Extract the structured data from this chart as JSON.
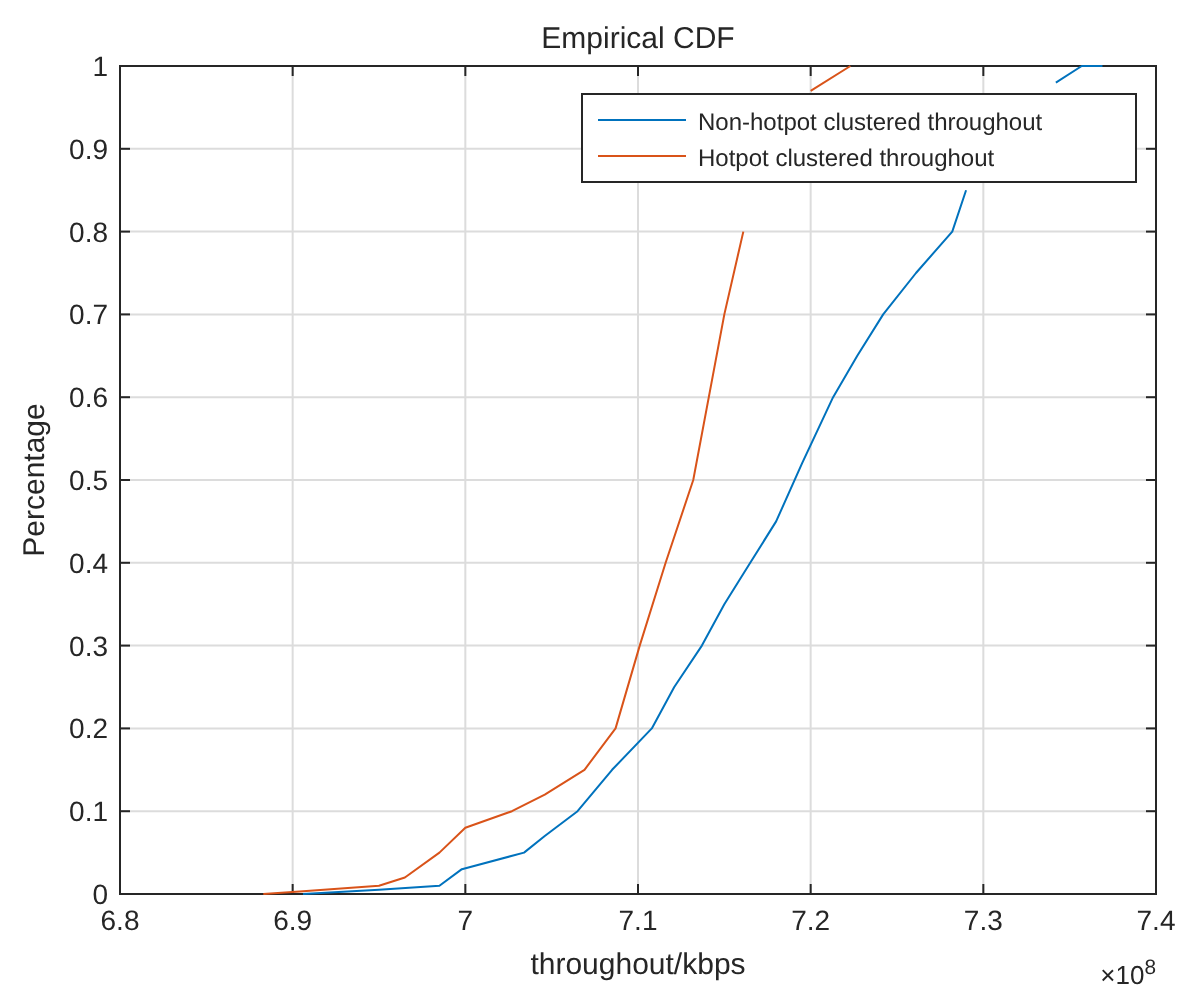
{
  "chart_data": {
    "type": "line",
    "title": "Empirical CDF",
    "xlabel": "throughout/kbps",
    "ylabel": "Percentage",
    "annotations": [
      "×10$^{8}$"
    ],
    "xlim": [
      6.8,
      7.4
    ],
    "xticks": [
      6.8,
      6.9,
      7,
      7.1,
      7.2,
      7.3,
      7.4
    ],
    "ylim": [
      0,
      1
    ],
    "yticks": [
      0,
      0.1,
      0.2,
      0.3,
      0.4,
      0.5,
      0.6,
      0.7,
      0.8,
      0.9,
      1
    ],
    "grid": true,
    "legend": "top right",
    "marker": "none",
    "line_style": "solid",
    "series": [
      {
        "name": "Non-hotpot clustered throughout",
        "color": "#0072bd",
        "x": [
          6.906,
          6.95,
          6.985,
          6.998,
          7.034,
          7.046,
          7.065,
          7.085,
          7.108,
          7.121,
          7.137,
          7.15,
          7.165,
          7.18,
          7.195,
          7.213,
          7.227,
          7.242,
          7.261,
          7.282,
          7.29,
          7.3,
          7.327,
          7.342,
          7.357,
          7.369
        ],
        "values": [
          0,
          0.005,
          0.01,
          0.03,
          0.05,
          0.07,
          0.1,
          0.15,
          0.2,
          0.25,
          0.3,
          0.35,
          0.4,
          0.45,
          0.52,
          0.6,
          0.65,
          0.7,
          0.75,
          0.8,
          0.85,
          null,
          null,
          0.98,
          1,
          1
        ]
      },
      {
        "name": "Hotpot clustered throughout",
        "color": "#d95319",
        "x": [
          6.883,
          6.904,
          6.95,
          6.965,
          6.985,
          7.0,
          7.027,
          7.046,
          7.069,
          7.087,
          7.101,
          7.116,
          7.132,
          7.15,
          7.161,
          7.177,
          7.2,
          7.223
        ],
        "values": [
          0,
          0.003,
          0.01,
          0.02,
          0.05,
          0.08,
          0.1,
          0.12,
          0.15,
          0.2,
          0.3,
          0.4,
          0.5,
          0.7,
          0.8,
          null,
          0.97,
          1
        ]
      }
    ]
  }
}
